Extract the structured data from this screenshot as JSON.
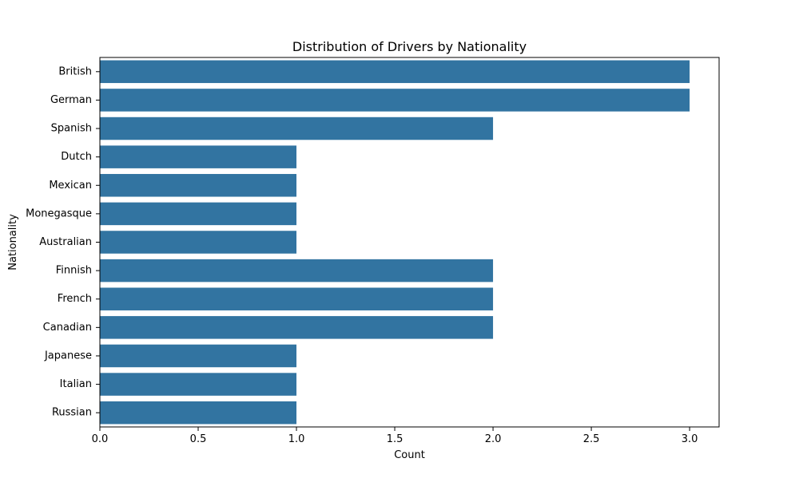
{
  "chart_data": {
    "type": "bar",
    "orientation": "horizontal",
    "title": "Distribution of Drivers by Nationality",
    "xlabel": "Count",
    "ylabel": "Nationality",
    "categories": [
      "British",
      "German",
      "Spanish",
      "Dutch",
      "Mexican",
      "Monegasque",
      "Australian",
      "Finnish",
      "French",
      "Canadian",
      "Japanese",
      "Italian",
      "Russian"
    ],
    "values": [
      3,
      3,
      2,
      1,
      1,
      1,
      1,
      2,
      2,
      2,
      1,
      1,
      1
    ],
    "xlim": [
      0,
      3.15
    ],
    "x_ticks": [
      0.0,
      0.5,
      1.0,
      1.5,
      2.0,
      2.5,
      3.0
    ],
    "x_tick_labels": [
      "0.0",
      "0.5",
      "1.0",
      "1.5",
      "2.0",
      "2.5",
      "3.0"
    ],
    "grid": false,
    "legend": "none",
    "bar_color": "#3274a1"
  }
}
